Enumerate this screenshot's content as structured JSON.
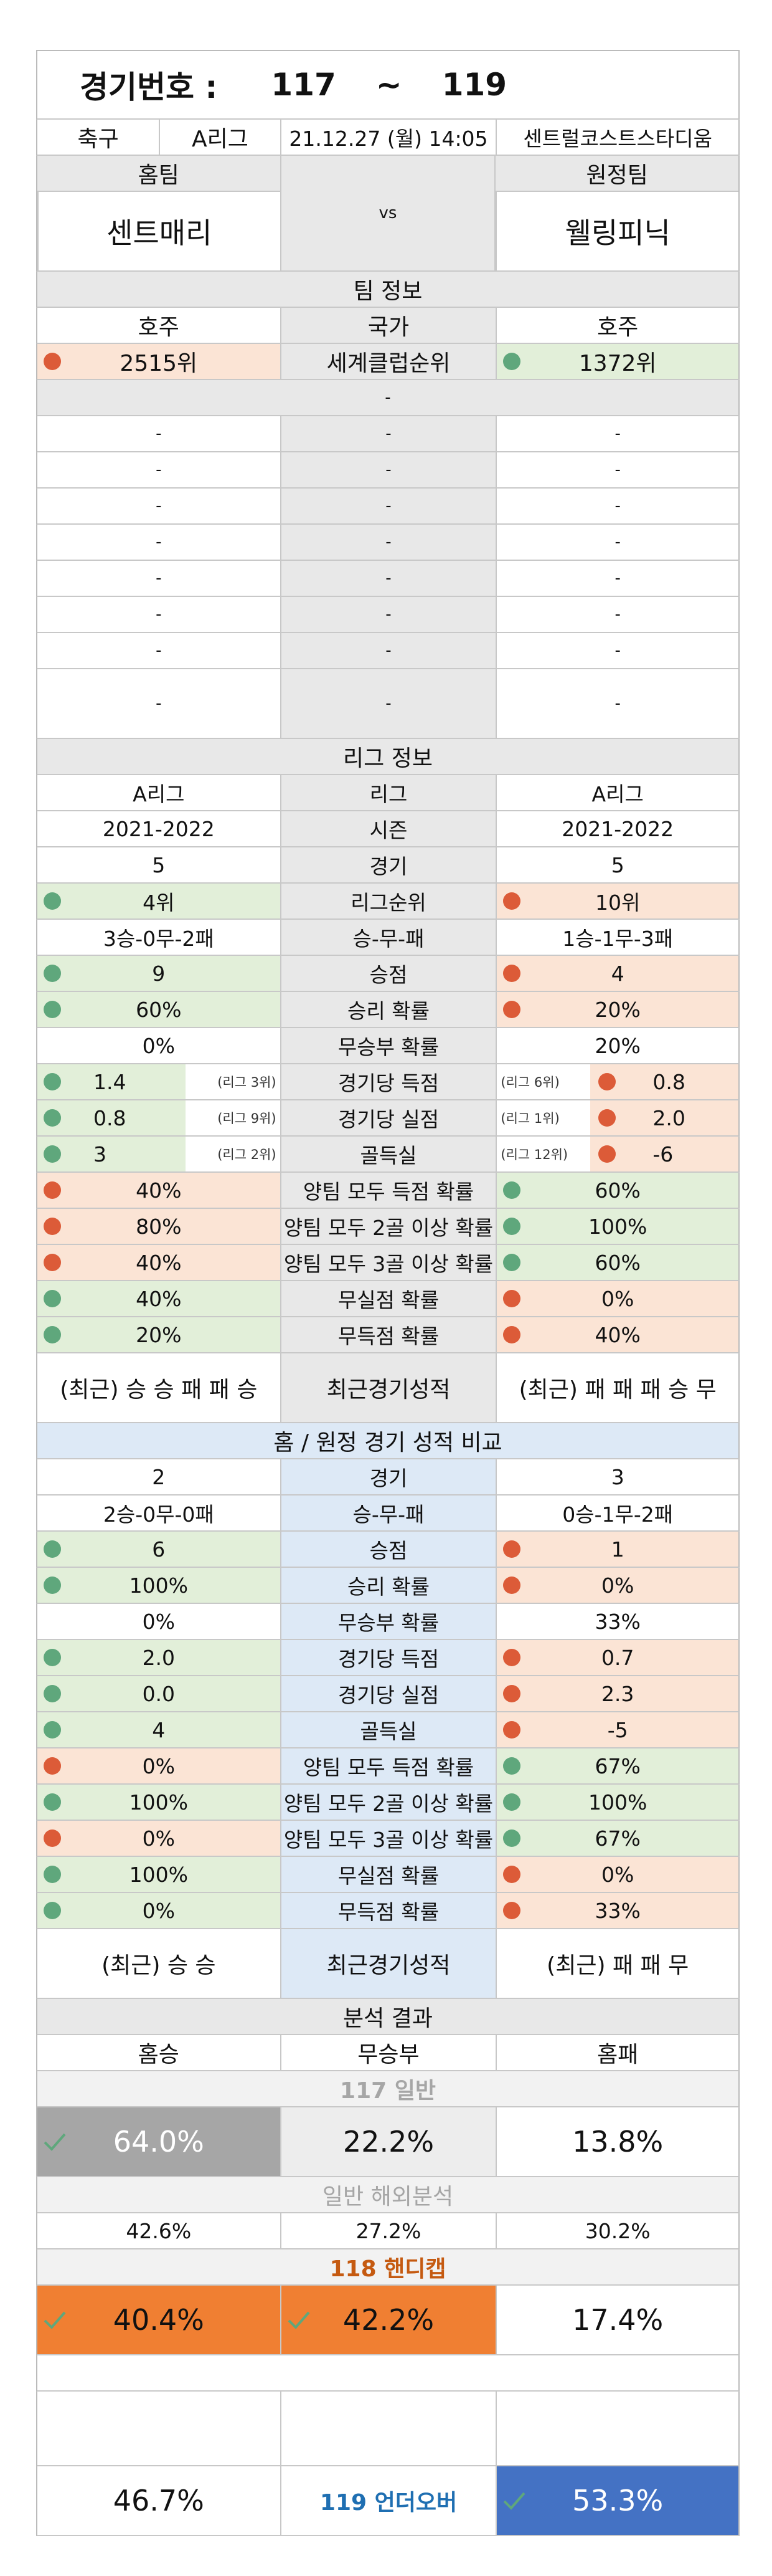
{
  "header": {
    "game_no_label": "경기번호 :",
    "game_from": "117",
    "tilde": "~",
    "game_to": "119"
  },
  "match": {
    "sport": "축구",
    "league": "A리그",
    "datetime": "21.12.27 (월) 14:05",
    "venue": "센트럴코스트스타디움"
  },
  "teams": {
    "home_label": "홈팀",
    "away_label": "원정팀",
    "vs": "vs",
    "home": "센트매리",
    "away": "웰링피닉"
  },
  "team_info": {
    "title": "팀 정보",
    "country_label": "국가",
    "home_country": "호주",
    "away_country": "호주",
    "rank_label": "세계클럽순위",
    "home_rank": "2515위",
    "away_rank": "1372위",
    "dash": "-"
  },
  "league_info": {
    "title": "리그 정보",
    "rows": [
      {
        "label": "리그",
        "home": "A리그",
        "away": "A리그"
      },
      {
        "label": "시즌",
        "home": "2021-2022",
        "away": "2021-2022"
      },
      {
        "label": "경기",
        "home": "5",
        "away": "5"
      },
      {
        "label": "리그순위",
        "home": "4위",
        "away": "10위",
        "hc": "green",
        "ac": "red",
        "hd": "g",
        "ad": "r"
      },
      {
        "label": "승-무-패",
        "home": "3승-0무-2패",
        "away": "1승-1무-3패"
      },
      {
        "label": "승점",
        "home": "9",
        "away": "4",
        "hc": "green",
        "ac": "red",
        "hd": "g",
        "ad": "r"
      },
      {
        "label": "승리 확률",
        "home": "60%",
        "away": "20%",
        "hc": "green",
        "ac": "red",
        "hd": "g",
        "ad": "r"
      },
      {
        "label": "무승부 확률",
        "home": "0%",
        "away": "20%"
      }
    ],
    "rank_rows": [
      {
        "label": "경기당 득점",
        "home": "1.4",
        "away": "0.8",
        "hrank": "(리그 3위)",
        "arank": "(리그 6위)",
        "hc": "green",
        "ac": "red",
        "hd": "g",
        "ad": "r"
      },
      {
        "label": "경기당 실점",
        "home": "0.8",
        "away": "2.0",
        "hrank": "(리그 9위)",
        "arank": "(리그 1위)",
        "hc": "green",
        "ac": "red",
        "hd": "g",
        "ad": "r"
      },
      {
        "label": "골득실",
        "home": "3",
        "away": "-6",
        "hrank": "(리그 2위)",
        "arank": "(리그 12위)",
        "hc": "green",
        "ac": "red",
        "hd": "g",
        "ad": "r"
      }
    ],
    "rows2": [
      {
        "label": "양팀 모두 득점 확률",
        "home": "40%",
        "away": "60%",
        "hc": "red",
        "ac": "green",
        "hd": "r",
        "ad": "g"
      },
      {
        "label": "양팀 모두 2골 이상 확률",
        "home": "80%",
        "away": "100%",
        "hc": "red",
        "ac": "green",
        "hd": "r",
        "ad": "g"
      },
      {
        "label": "양팀 모두 3골 이상 확률",
        "home": "40%",
        "away": "60%",
        "hc": "red",
        "ac": "green",
        "hd": "r",
        "ad": "g"
      },
      {
        "label": "무실점 확률",
        "home": "40%",
        "away": "0%",
        "hc": "green",
        "ac": "red",
        "hd": "g",
        "ad": "r"
      },
      {
        "label": "무득점 확률",
        "home": "20%",
        "away": "40%",
        "hc": "green",
        "ac": "red",
        "hd": "g",
        "ad": "r"
      }
    ],
    "recent": {
      "label": "최근경기성적",
      "home": "(최근) 승 승 패 패 승",
      "away": "(최근) 패 패 패 승 무"
    }
  },
  "compare": {
    "title": "홈 / 원정 경기 성적 비교",
    "rows": [
      {
        "label": "경기",
        "home": "2",
        "away": "3"
      },
      {
        "label": "승-무-패",
        "home": "2승-0무-0패",
        "away": "0승-1무-2패"
      },
      {
        "label": "승점",
        "home": "6",
        "away": "1",
        "hc": "green",
        "ac": "red",
        "hd": "g",
        "ad": "r"
      },
      {
        "label": "승리 확률",
        "home": "100%",
        "away": "0%",
        "hc": "green",
        "ac": "red",
        "hd": "g",
        "ad": "r"
      },
      {
        "label": "무승부 확률",
        "home": "0%",
        "away": "33%"
      },
      {
        "label": "경기당 득점",
        "home": "2.0",
        "away": "0.7",
        "hc": "green",
        "ac": "red",
        "hd": "g",
        "ad": "r"
      },
      {
        "label": "경기당 실점",
        "home": "0.0",
        "away": "2.3",
        "hc": "green",
        "ac": "red",
        "hd": "g",
        "ad": "r"
      },
      {
        "label": "골득실",
        "home": "4",
        "away": "-5",
        "hc": "green",
        "ac": "red",
        "hd": "g",
        "ad": "r"
      },
      {
        "label": "양팀 모두 득점 확률",
        "home": "0%",
        "away": "67%",
        "hc": "red",
        "ac": "green",
        "hd": "r",
        "ad": "g"
      },
      {
        "label": "양팀 모두 2골 이상 확률",
        "home": "100%",
        "away": "100%",
        "hc": "green",
        "ac": "green",
        "hd": "g",
        "ad": "g"
      },
      {
        "label": "양팀 모두 3골 이상 확률",
        "home": "0%",
        "away": "67%",
        "hc": "red",
        "ac": "green",
        "hd": "r",
        "ad": "g"
      },
      {
        "label": "무실점 확률",
        "home": "100%",
        "away": "0%",
        "hc": "green",
        "ac": "red",
        "hd": "g",
        "ad": "r"
      },
      {
        "label": "무득점 확률",
        "home": "0%",
        "away": "33%",
        "hc": "green",
        "ac": "red",
        "hd": "g",
        "ad": "r"
      }
    ],
    "recent": {
      "label": "최근경기성적",
      "home": "(최근) 승 승",
      "away": "(최근) 패 패 무"
    }
  },
  "analysis": {
    "title": "분석 결과",
    "cols": {
      "home": "홈승",
      "draw": "무승부",
      "away": "홈패"
    },
    "general_title": "117 일반",
    "general": {
      "home": "64.0%",
      "draw": "22.2%",
      "away": "13.8%"
    },
    "overseas_title": "일반 해외분석",
    "overseas": {
      "home": "42.6%",
      "draw": "27.2%",
      "away": "30.2%"
    },
    "handicap_title": "118 핸디캡",
    "handicap": {
      "home": "40.4%",
      "draw": "42.2%",
      "away": "17.4%"
    },
    "underover": {
      "under": "46.7%",
      "label": "119 언더오버",
      "over": "53.3%"
    }
  },
  "colors": {
    "green": "#e2efd9",
    "red": "#fbe4d5",
    "blue": "#dde9f6",
    "orange": "#f07f32",
    "gray_pick": "#a6a6a6",
    "blue_pick": "#4472c4",
    "title_gray": "#a6a6a6",
    "title_orange": "#c55a11",
    "title_blue": "#1f6fb2"
  }
}
